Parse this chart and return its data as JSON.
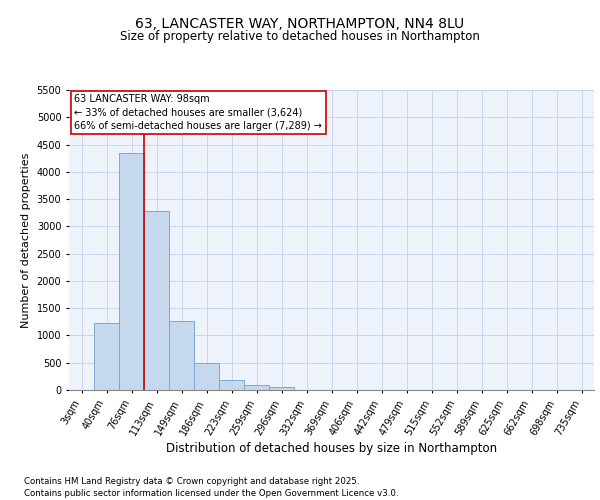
{
  "title1": "63, LANCASTER WAY, NORTHAMPTON, NN4 8LU",
  "title2": "Size of property relative to detached houses in Northampton",
  "xlabel": "Distribution of detached houses by size in Northampton",
  "ylabel": "Number of detached properties",
  "categories": [
    "3sqm",
    "40sqm",
    "76sqm",
    "113sqm",
    "149sqm",
    "186sqm",
    "223sqm",
    "259sqm",
    "296sqm",
    "332sqm",
    "369sqm",
    "406sqm",
    "442sqm",
    "479sqm",
    "515sqm",
    "552sqm",
    "589sqm",
    "625sqm",
    "662sqm",
    "698sqm",
    "735sqm"
  ],
  "values": [
    0,
    1230,
    4350,
    3280,
    1260,
    490,
    185,
    100,
    55,
    0,
    0,
    0,
    0,
    0,
    0,
    0,
    0,
    0,
    0,
    0,
    0
  ],
  "bar_color": "#c5d8ee",
  "bar_edge_color": "#7aaad0",
  "vline_color": "#cc0000",
  "annotation_text": "63 LANCASTER WAY: 98sqm\n← 33% of detached houses are smaller (3,624)\n66% of semi-detached houses are larger (7,289) →",
  "annotation_box_color": "#ffffff",
  "annotation_box_edge_color": "#cc0000",
  "ylim": [
    0,
    5500
  ],
  "yticks": [
    0,
    500,
    1000,
    1500,
    2000,
    2500,
    3000,
    3500,
    4000,
    4500,
    5000,
    5500
  ],
  "footer1": "Contains HM Land Registry data © Crown copyright and database right 2025.",
  "footer2": "Contains public sector information licensed under the Open Government Licence v3.0.",
  "bg_color": "#eef2fb",
  "grid_color": "#c5cfe8",
  "title_fontsize": 10,
  "subtitle_fontsize": 8.5,
  "tick_fontsize": 7,
  "ylabel_fontsize": 8,
  "xlabel_fontsize": 8.5,
  "footer_fontsize": 6.2
}
